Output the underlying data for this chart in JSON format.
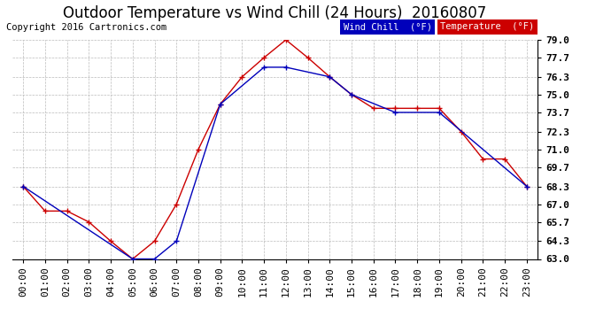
{
  "title": "Outdoor Temperature vs Wind Chill (24 Hours)  20160807",
  "copyright": "Copyright 2016 Cartronics.com",
  "ylim": [
    63.0,
    79.0
  ],
  "yticks": [
    63.0,
    64.3,
    65.7,
    67.0,
    68.3,
    69.7,
    71.0,
    72.3,
    73.7,
    75.0,
    76.3,
    77.7,
    79.0
  ],
  "hours": [
    "00:00",
    "01:00",
    "02:00",
    "03:00",
    "04:00",
    "05:00",
    "06:00",
    "07:00",
    "08:00",
    "09:00",
    "10:00",
    "11:00",
    "12:00",
    "13:00",
    "14:00",
    "15:00",
    "16:00",
    "17:00",
    "18:00",
    "19:00",
    "20:00",
    "21:00",
    "22:00",
    "23:00"
  ],
  "temperature": [
    68.3,
    66.5,
    66.5,
    65.7,
    64.3,
    63.0,
    64.3,
    67.0,
    71.0,
    74.3,
    76.3,
    77.7,
    79.0,
    77.7,
    76.3,
    75.0,
    74.0,
    74.0,
    74.0,
    74.0,
    72.3,
    70.3,
    70.3,
    68.3
  ],
  "wind_chill_x": [
    0,
    5,
    6,
    7,
    9,
    11,
    12,
    14,
    15,
    17,
    19,
    23
  ],
  "wind_chill_y": [
    68.3,
    63.0,
    63.0,
    64.3,
    74.3,
    77.0,
    77.0,
    76.3,
    75.0,
    73.7,
    73.7,
    68.3
  ],
  "temp_color": "#cc0000",
  "wind_color": "#0000bb",
  "bg_color": "#ffffff",
  "grid_color": "#bbbbbb",
  "legend_wind_bg": "#0000bb",
  "legend_temp_bg": "#cc0000",
  "title_fontsize": 12,
  "tick_fontsize": 8,
  "copyright_fontsize": 7.5
}
